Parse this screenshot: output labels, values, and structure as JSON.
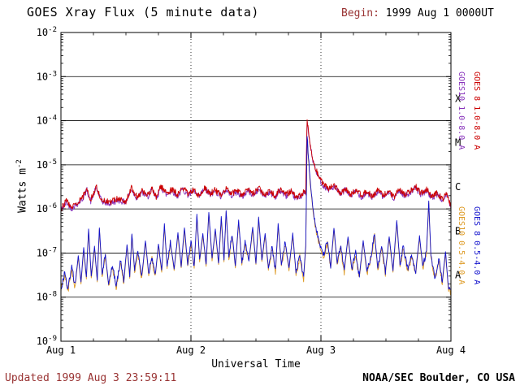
{
  "header": {
    "title": "GOES Xray Flux (5 minute data)",
    "begin_label": "Begin:",
    "begin_value": " 1999 Aug 1 0000UT"
  },
  "footer": {
    "updated": "Updated 1999 Aug 3 23:59:11",
    "credit": "NOAA/SEC Boulder, CO USA"
  },
  "axis": {
    "ylabel_base": "Watts m",
    "ylabel_sup": "-2"
  },
  "ui_colors": {
    "maroon_text": "#993333",
    "axis_black": "#000000"
  },
  "chart_data": {
    "type": "line",
    "title": "GOES Xray Flux (5 minute data)",
    "xlabel": "Universal Time",
    "ylabel": "Watts m-2",
    "x_axis": "hours since 1999 Aug 1 0000UT",
    "xlim_hours": [
      0,
      72
    ],
    "ylim_exponents": [
      -9,
      -2
    ],
    "y_scale": "log10",
    "x_ticks": [
      {
        "hour": 0,
        "label": "Aug 1"
      },
      {
        "hour": 24,
        "label": "Aug 2"
      },
      {
        "hour": 48,
        "label": "Aug 3"
      },
      {
        "hour": 72,
        "label": "Aug 4"
      }
    ],
    "x_minor_tick_hours": 6,
    "y_tick_exponents": [
      -2,
      -3,
      -4,
      -5,
      -6,
      -7,
      -8,
      -9
    ],
    "hlines_exponents": [
      -3,
      -4,
      -5,
      -6,
      -7,
      -8
    ],
    "vlines_hours": [
      24,
      48
    ],
    "flare_classes": [
      {
        "label": "X",
        "log_center": -3.5
      },
      {
        "label": "M",
        "log_center": -4.5
      },
      {
        "label": "C",
        "log_center": -5.5
      },
      {
        "label": "B",
        "log_center": -6.5
      },
      {
        "label": "A",
        "log_center": -7.5
      }
    ],
    "legend": [
      {
        "label": "GOES10 1.0-8.0 A",
        "color": "#8833bb"
      },
      {
        "label": "GOES 8 1.0-8.0 A",
        "color": "#cc0000"
      },
      {
        "label": "GOES10 0.5-4.0 A",
        "color": "#dd9922"
      },
      {
        "label": "GOES 8 0.5-4.0 A",
        "color": "#1111cc"
      }
    ],
    "flare_event": {
      "peak_hour": 45.45,
      "long_peak_wm2": 0.00011,
      "short_peak_wm2": 4.5e-05
    },
    "series": [
      {
        "name": "GOES10 1.0-8.0 A",
        "color": "#8833bb",
        "derived_from": "GOES 8 1.0-8.0 A",
        "scale": 0.93
      },
      {
        "name": "GOES 8 1.0-8.0 A",
        "color": "#cc0000",
        "points": [
          [
            0,
            1e-06
          ],
          [
            1,
            1.5e-06
          ],
          [
            2,
            1.1e-06
          ],
          [
            3,
            1.4e-06
          ],
          [
            4,
            1.8e-06
          ],
          [
            4.8,
            2.9e-06
          ],
          [
            5.5,
            1.6e-06
          ],
          [
            6.5,
            3.2e-06
          ],
          [
            7.5,
            1.6e-06
          ],
          [
            9,
            1.4e-06
          ],
          [
            10.5,
            1.7e-06
          ],
          [
            12,
            1.5e-06
          ],
          [
            13,
            3e-06
          ],
          [
            14,
            1.9e-06
          ],
          [
            15,
            2.5e-06
          ],
          [
            16,
            2e-06
          ],
          [
            16.8,
            2.9e-06
          ],
          [
            17.6,
            1.9e-06
          ],
          [
            18.5,
            3.3e-06
          ],
          [
            19.5,
            2.2e-06
          ],
          [
            20.5,
            2.8e-06
          ],
          [
            21.5,
            2.1e-06
          ],
          [
            22.5,
            3e-06
          ],
          [
            23.5,
            2.2e-06
          ],
          [
            24.5,
            2.7e-06
          ],
          [
            25.5,
            2e-06
          ],
          [
            26.5,
            3.1e-06
          ],
          [
            27.5,
            2.2e-06
          ],
          [
            28.5,
            2.7e-06
          ],
          [
            29.5,
            2.1e-06
          ],
          [
            30.5,
            2.9e-06
          ],
          [
            31.5,
            2.2e-06
          ],
          [
            32.5,
            2.6e-06
          ],
          [
            33.5,
            2e-06
          ],
          [
            34.5,
            2.8e-06
          ],
          [
            35.5,
            2.2e-06
          ],
          [
            36.5,
            3e-06
          ],
          [
            37.5,
            2.1e-06
          ],
          [
            38.5,
            2.6e-06
          ],
          [
            39.5,
            2e-06
          ],
          [
            40.5,
            2.8e-06
          ],
          [
            41.5,
            2.1e-06
          ],
          [
            42.5,
            2.5e-06
          ],
          [
            43.5,
            1.8e-06
          ],
          [
            44.5,
            2.2e-06
          ],
          [
            45.2,
            2.6e-06
          ],
          [
            45.45,
            0.00011
          ],
          [
            45.7,
            5.5e-05
          ],
          [
            46,
            3e-05
          ],
          [
            46.5,
            1.4e-05
          ],
          [
            47,
            8e-06
          ],
          [
            47.8,
            5e-06
          ],
          [
            48.5,
            3.6e-06
          ],
          [
            49.5,
            2.9e-06
          ],
          [
            50.5,
            3.4e-06
          ],
          [
            51.5,
            2.3e-06
          ],
          [
            52.5,
            2.9e-06
          ],
          [
            53.5,
            2.1e-06
          ],
          [
            54.5,
            2.7e-06
          ],
          [
            55.5,
            2e-06
          ],
          [
            56.5,
            2.5e-06
          ],
          [
            57.5,
            1.9e-06
          ],
          [
            58.5,
            2.7e-06
          ],
          [
            59.5,
            2e-06
          ],
          [
            60.5,
            2.5e-06
          ],
          [
            61.5,
            1.9e-06
          ],
          [
            62.5,
            2.8e-06
          ],
          [
            63.5,
            2.1e-06
          ],
          [
            64.5,
            2.6e-06
          ],
          [
            65.5,
            3.2e-06
          ],
          [
            66.5,
            2.3e-06
          ],
          [
            67.5,
            2.8e-06
          ],
          [
            68.5,
            1.9e-06
          ],
          [
            69.5,
            2.3e-06
          ],
          [
            70.5,
            1.6e-06
          ],
          [
            71.2,
            2.4e-06
          ],
          [
            72,
            1.1e-06
          ]
        ]
      },
      {
        "name": "GOES10 0.5-4.0 A",
        "color": "#dd9922",
        "derived_from": "GOES 8 0.5-4.0 A",
        "scale": 0.9
      },
      {
        "name": "GOES 8 0.5-4.0 A",
        "color": "#1111cc",
        "points": [
          [
            0,
            1.6e-08
          ],
          [
            0.7,
            3.5e-08
          ],
          [
            1.3,
            1.5e-08
          ],
          [
            2,
            5e-08
          ],
          [
            2.6,
            1.8e-08
          ],
          [
            3.2,
            9e-08
          ],
          [
            3.7,
            2.2e-08
          ],
          [
            4.2,
            1.3e-07
          ],
          [
            4.7,
            2.8e-08
          ],
          [
            5.1,
            3.5e-07
          ],
          [
            5.6,
            3e-08
          ],
          [
            6.2,
            1.4e-07
          ],
          [
            6.7,
            2.5e-08
          ],
          [
            7.1,
            3.8e-07
          ],
          [
            7.6,
            3.2e-08
          ],
          [
            8.2,
            9e-08
          ],
          [
            8.8,
            2e-08
          ],
          [
            9.5,
            5.5e-08
          ],
          [
            10.2,
            1.8e-08
          ],
          [
            11,
            7e-08
          ],
          [
            11.6,
            2.2e-08
          ],
          [
            12.2,
            1.6e-07
          ],
          [
            12.7,
            3e-08
          ],
          [
            13.1,
            2.8e-07
          ],
          [
            13.6,
            4e-08
          ],
          [
            14.2,
            1.1e-07
          ],
          [
            14.9,
            2.8e-08
          ],
          [
            15.6,
            1.9e-07
          ],
          [
            16.2,
            3.5e-08
          ],
          [
            16.8,
            8e-08
          ],
          [
            17.4,
            3e-08
          ],
          [
            18,
            1.6e-07
          ],
          [
            18.6,
            4e-08
          ],
          [
            19.1,
            4.5e-07
          ],
          [
            19.6,
            5e-08
          ],
          [
            20.2,
            1.8e-07
          ],
          [
            20.9,
            4.5e-08
          ],
          [
            21.6,
            2.8e-07
          ],
          [
            22.2,
            5e-08
          ],
          [
            22.8,
            3.8e-07
          ],
          [
            23.4,
            5.5e-08
          ],
          [
            24,
            1.8e-07
          ],
          [
            24.6,
            5e-08
          ],
          [
            25.1,
            7.5e-07
          ],
          [
            25.6,
            7e-08
          ],
          [
            26.2,
            2.8e-07
          ],
          [
            26.8,
            5.5e-08
          ],
          [
            27.3,
            8.5e-07
          ],
          [
            27.9,
            7.5e-08
          ],
          [
            28.5,
            3.5e-07
          ],
          [
            29.1,
            6e-08
          ],
          [
            29.6,
            6.5e-07
          ],
          [
            30.1,
            7e-08
          ],
          [
            30.5,
            9.5e-07
          ],
          [
            31,
            8e-08
          ],
          [
            31.6,
            2.8e-07
          ],
          [
            32.2,
            5e-08
          ],
          [
            32.8,
            5.5e-07
          ],
          [
            33.4,
            6e-08
          ],
          [
            34,
            1.8e-07
          ],
          [
            34.7,
            7e-08
          ],
          [
            35.4,
            3.8e-07
          ],
          [
            36,
            6e-08
          ],
          [
            36.5,
            6.5e-07
          ],
          [
            37.1,
            7e-08
          ],
          [
            37.7,
            2.8e-07
          ],
          [
            38.3,
            4.5e-08
          ],
          [
            39,
            1.4e-07
          ],
          [
            39.6,
            4e-08
          ],
          [
            40.1,
            4.5e-07
          ],
          [
            40.7,
            5.5e-08
          ],
          [
            41.4,
            1.8e-07
          ],
          [
            42.1,
            4.5e-08
          ],
          [
            42.8,
            2.8e-07
          ],
          [
            43.4,
            3.5e-08
          ],
          [
            44.1,
            9e-08
          ],
          [
            44.8,
            2.8e-08
          ],
          [
            45.2,
            1.5e-07
          ],
          [
            45.45,
            4.5e-05
          ],
          [
            45.7,
            1.4e-05
          ],
          [
            46,
            4.5e-06
          ],
          [
            46.5,
            1.1e-06
          ],
          [
            47,
            4e-07
          ],
          [
            47.8,
            1.6e-07
          ],
          [
            48.5,
            9e-08
          ],
          [
            49.2,
            1.9e-07
          ],
          [
            49.8,
            5e-08
          ],
          [
            50.4,
            3.8e-07
          ],
          [
            51,
            6e-08
          ],
          [
            51.6,
            1.5e-07
          ],
          [
            52.3,
            4e-08
          ],
          [
            53,
            2.4e-07
          ],
          [
            53.7,
            4.5e-08
          ],
          [
            54.4,
            1e-07
          ],
          [
            55.1,
            3e-08
          ],
          [
            55.8,
            1.9e-07
          ],
          [
            56.5,
            3.8e-08
          ],
          [
            57.2,
            8e-08
          ],
          [
            57.9,
            2.8e-07
          ],
          [
            58.5,
            4.5e-08
          ],
          [
            59.2,
            1.4e-07
          ],
          [
            59.9,
            3.8e-08
          ],
          [
            60.6,
            2.4e-07
          ],
          [
            61.3,
            4e-08
          ],
          [
            62,
            5.5e-07
          ],
          [
            62.6,
            5.5e-08
          ],
          [
            63.2,
            1.4e-07
          ],
          [
            64,
            4.5e-08
          ],
          [
            64.8,
            9e-08
          ],
          [
            65.5,
            3.8e-08
          ],
          [
            66.2,
            2.4e-07
          ],
          [
            66.8,
            5e-08
          ],
          [
            67.5,
            1.1e-07
          ],
          [
            67.9,
            1.5e-06
          ],
          [
            68.3,
            9e-08
          ],
          [
            69,
            2.8e-08
          ],
          [
            69.8,
            7e-08
          ],
          [
            70.4,
            2.2e-08
          ],
          [
            71,
            1.1e-07
          ],
          [
            71.5,
            1.8e-08
          ],
          [
            72,
            1.4e-08
          ]
        ]
      }
    ],
    "render_hints": {
      "jitter_log10": 0.07,
      "step_hours": 0.0833,
      "seed": 42,
      "draw_order": [
        0,
        2,
        1,
        3
      ],
      "grid": "class-boundary horizontal lines, dotted day separators",
      "legend_position": "right edge, rotated"
    }
  }
}
